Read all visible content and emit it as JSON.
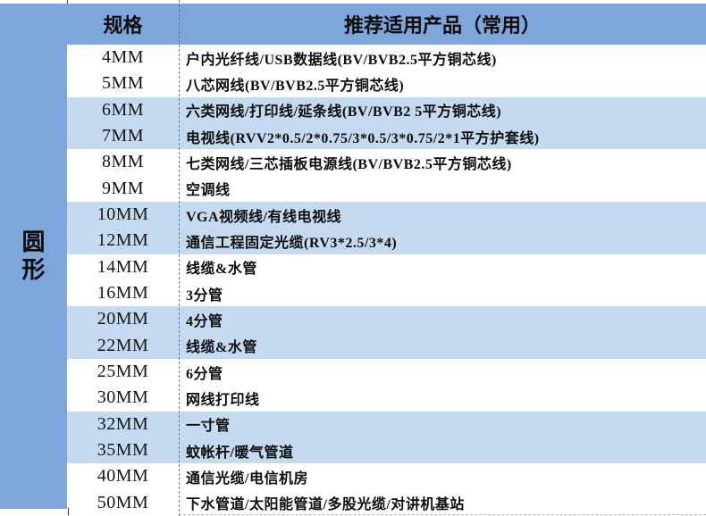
{
  "side": {
    "label": "圆形",
    "chars": [
      "圆",
      "形"
    ]
  },
  "header": {
    "spec": "规格",
    "product": "推荐适用产品（常用）"
  },
  "rows": [
    {
      "size": "4MM",
      "product": "户内光纤线/USB数据线(BV/BVB2.5平方铜芯线)"
    },
    {
      "size": "5MM",
      "product": "八芯网线(BV/BVB2.5平方铜芯线)"
    },
    {
      "size": "6MM",
      "product": "六类网线/打印线/延条线(BV/BVB2 5平方铜芯线)"
    },
    {
      "size": "7MM",
      "product": "电视线(RVV2*0.5/2*0.75/3*0.5/3*0.75/2*1平方护套线)"
    },
    {
      "size": "8MM",
      "product": "七类网线/三芯插板电源线(BV/BVB2.5平方铜芯线)"
    },
    {
      "size": "9MM",
      "product": "空调线"
    },
    {
      "size": "10MM",
      "product": "VGA视频线/有线电视线"
    },
    {
      "size": "12MM",
      "product": "通信工程固定光缆(RV3*2.5/3*4)"
    },
    {
      "size": "14MM",
      "product": "线缆&水管"
    },
    {
      "size": "16MM",
      "product": "3分管"
    },
    {
      "size": "20MM",
      "product": "4分管"
    },
    {
      "size": "22MM",
      "product": "线缆&水管"
    },
    {
      "size": "25MM",
      "product": "6分管"
    },
    {
      "size": "30MM",
      "product": "网线打印线"
    },
    {
      "size": "32MM",
      "product": "一寸管"
    },
    {
      "size": "35MM",
      "product": "蚊帐杆/暖气管道"
    },
    {
      "size": "40MM",
      "product": "通信光缆/电信机房"
    },
    {
      "size": "50MM",
      "product": "下水管道/太阳能管道/多股光缆/对讲机基站"
    }
  ],
  "colors": {
    "header_blue": "#7EA6DB",
    "sidebar_blue": "#7EA6DB",
    "band_blue": "#C5D9F1",
    "text": "#0D0D0D"
  }
}
